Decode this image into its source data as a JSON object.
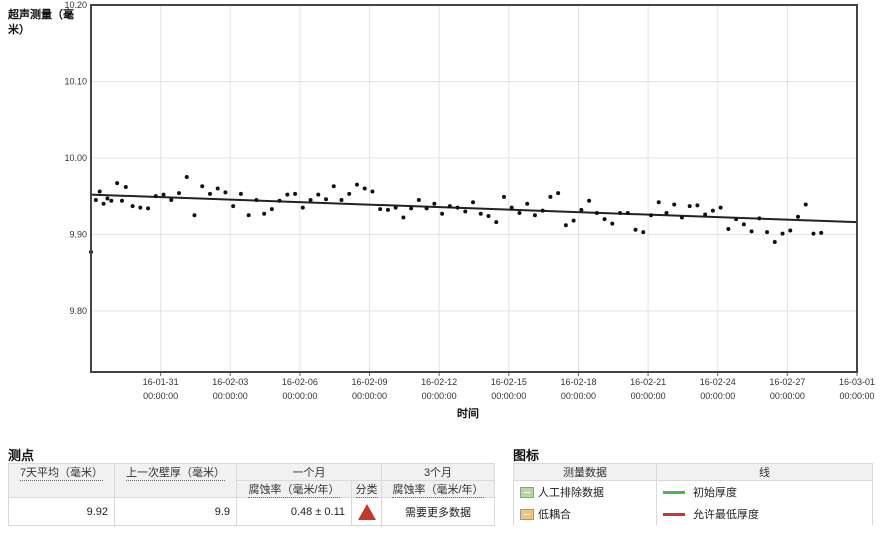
{
  "chart_data": {
    "type": "scatter",
    "ylabel": "超声测量（毫米）",
    "xlabel": "时间",
    "ylim": [
      9.72,
      10.2
    ],
    "xlim": [
      "16-01-28",
      "16-03-01"
    ],
    "y_ticks": [
      "10.20",
      "10.10",
      "10.00",
      "9.90",
      "9.80"
    ],
    "x_ticks": [
      {
        "date": "16-01-31",
        "time": "00:00:00"
      },
      {
        "date": "16-02-03",
        "time": "00:00:00"
      },
      {
        "date": "16-02-06",
        "time": "00:00:00"
      },
      {
        "date": "16-02-09",
        "time": "00:00:00"
      },
      {
        "date": "16-02-12",
        "time": "00:00:00"
      },
      {
        "date": "16-02-15",
        "time": "00:00:00"
      },
      {
        "date": "16-02-18",
        "time": "00:00:00"
      },
      {
        "date": "16-02-21",
        "time": "00:00:00"
      },
      {
        "date": "16-02-24",
        "time": "00:00:00"
      },
      {
        "date": "16-02-27",
        "time": "00:00:00"
      },
      {
        "date": "16-03-01",
        "time": "00:00:00"
      }
    ],
    "grid": true,
    "trend": {
      "start": [
        "16-01-28 00:00",
        9.952
      ],
      "end": [
        "16-03-01 00:00",
        9.916
      ]
    },
    "points": [
      [
        "16-01-28 00:00",
        9.877
      ],
      [
        "16-01-28 05:00",
        9.945
      ],
      [
        "16-01-28 09:00",
        9.956
      ],
      [
        "16-01-28 13:00",
        9.94
      ],
      [
        "16-01-28 17:00",
        9.947
      ],
      [
        "16-01-28 21:00",
        9.944
      ],
      [
        "16-01-29 03:00",
        9.967
      ],
      [
        "16-01-29 08:00",
        9.944
      ],
      [
        "16-01-29 12:00",
        9.962
      ],
      [
        "16-01-29 19:00",
        9.937
      ],
      [
        "16-01-30 03:00",
        9.935
      ],
      [
        "16-01-30 11:00",
        9.934
      ],
      [
        "16-01-30 19:00",
        9.95
      ],
      [
        "16-01-31 03:00",
        9.952
      ],
      [
        "16-01-31 11:00",
        9.945
      ],
      [
        "16-01-31 19:00",
        9.954
      ],
      [
        "16-02-01 03:00",
        9.975
      ],
      [
        "16-02-01 11:00",
        9.925
      ],
      [
        "16-02-01 19:00",
        9.963
      ],
      [
        "16-02-02 03:00",
        9.953
      ],
      [
        "16-02-02 11:00",
        9.96
      ],
      [
        "16-02-02 19:00",
        9.955
      ],
      [
        "16-02-03 03:00",
        9.937
      ],
      [
        "16-02-03 11:00",
        9.953
      ],
      [
        "16-02-03 19:00",
        9.925
      ],
      [
        "16-02-04 03:00",
        9.945
      ],
      [
        "16-02-04 11:00",
        9.927
      ],
      [
        "16-02-04 19:00",
        9.933
      ],
      [
        "16-02-05 03:00",
        9.944
      ],
      [
        "16-02-05 11:00",
        9.952
      ],
      [
        "16-02-05 19:00",
        9.953
      ],
      [
        "16-02-06 03:00",
        9.935
      ],
      [
        "16-02-06 11:00",
        9.945
      ],
      [
        "16-02-06 19:00",
        9.952
      ],
      [
        "16-02-07 03:00",
        9.946
      ],
      [
        "16-02-07 11:00",
        9.963
      ],
      [
        "16-02-07 19:00",
        9.945
      ],
      [
        "16-02-08 03:00",
        9.953
      ],
      [
        "16-02-08 11:00",
        9.965
      ],
      [
        "16-02-08 19:00",
        9.96
      ],
      [
        "16-02-09 03:00",
        9.956
      ],
      [
        "16-02-09 11:00",
        9.933
      ],
      [
        "16-02-09 19:00",
        9.932
      ],
      [
        "16-02-10 03:00",
        9.935
      ],
      [
        "16-02-10 11:00",
        9.922
      ],
      [
        "16-02-10 19:00",
        9.934
      ],
      [
        "16-02-11 03:00",
        9.945
      ],
      [
        "16-02-11 11:00",
        9.934
      ],
      [
        "16-02-11 19:00",
        9.94
      ],
      [
        "16-02-12 03:00",
        9.927
      ],
      [
        "16-02-12 11:00",
        9.937
      ],
      [
        "16-02-12 19:00",
        9.935
      ],
      [
        "16-02-13 03:00",
        9.93
      ],
      [
        "16-02-13 11:00",
        9.942
      ],
      [
        "16-02-13 19:00",
        9.927
      ],
      [
        "16-02-14 03:00",
        9.924
      ],
      [
        "16-02-14 11:00",
        9.916
      ],
      [
        "16-02-14 19:00",
        9.949
      ],
      [
        "16-02-15 03:00",
        9.935
      ],
      [
        "16-02-15 11:00",
        9.928
      ],
      [
        "16-02-15 19:00",
        9.94
      ],
      [
        "16-02-16 03:00",
        9.925
      ],
      [
        "16-02-16 11:00",
        9.931
      ],
      [
        "16-02-16 19:00",
        9.949
      ],
      [
        "16-02-17 03:00",
        9.954
      ],
      [
        "16-02-17 11:00",
        9.912
      ],
      [
        "16-02-17 19:00",
        9.918
      ],
      [
        "16-02-18 03:00",
        9.932
      ],
      [
        "16-02-18 11:00",
        9.944
      ],
      [
        "16-02-18 19:00",
        9.928
      ],
      [
        "16-02-19 03:00",
        9.92
      ],
      [
        "16-02-19 11:00",
        9.914
      ],
      [
        "16-02-19 19:00",
        9.928
      ],
      [
        "16-02-20 03:00",
        9.928
      ],
      [
        "16-02-20 11:00",
        9.906
      ],
      [
        "16-02-20 19:00",
        9.903
      ],
      [
        "16-02-21 03:00",
        9.925
      ],
      [
        "16-02-21 11:00",
        9.942
      ],
      [
        "16-02-21 19:00",
        9.928
      ],
      [
        "16-02-22 03:00",
        9.939
      ],
      [
        "16-02-22 11:00",
        9.922
      ],
      [
        "16-02-22 19:00",
        9.937
      ],
      [
        "16-02-23 03:00",
        9.938
      ],
      [
        "16-02-23 11:00",
        9.926
      ],
      [
        "16-02-23 19:00",
        9.931
      ],
      [
        "16-02-24 03:00",
        9.935
      ],
      [
        "16-02-24 11:00",
        9.907
      ],
      [
        "16-02-24 19:00",
        9.92
      ],
      [
        "16-02-25 03:00",
        9.913
      ],
      [
        "16-02-25 11:00",
        9.904
      ],
      [
        "16-02-25 19:00",
        9.921
      ],
      [
        "16-02-26 03:00",
        9.903
      ],
      [
        "16-02-26 11:00",
        9.89
      ],
      [
        "16-02-26 19:00",
        9.901
      ],
      [
        "16-02-27 03:00",
        9.905
      ],
      [
        "16-02-27 11:00",
        9.923
      ],
      [
        "16-02-27 19:00",
        9.939
      ],
      [
        "16-02-28 03:00",
        9.901
      ],
      [
        "16-02-28 11:00",
        9.902
      ]
    ]
  },
  "points_section": {
    "title": "测点",
    "headers": {
      "avg7": "7天平均（毫米）",
      "last_wall": "上一次壁厚（毫米）",
      "one_month": "一个月",
      "three_month": "3个月",
      "rate": "腐蚀率（毫米/年）",
      "category": "分类",
      "rate3": "腐蚀率（毫米/年）"
    },
    "row": {
      "avg7": "9.92",
      "last_wall": "9.9",
      "rate_1m": "0.48 ± 0.11",
      "category_icon": "red-triangle-warning",
      "rate_3m": "需要更多数据"
    }
  },
  "legend_section": {
    "title": "图标",
    "headers": {
      "data": "测量数据",
      "line": "线"
    },
    "items": [
      {
        "label": "人工排除数据",
        "color": "#b5d99c"
      },
      {
        "label": "低耦合",
        "color": "#f5c27a"
      }
    ],
    "lines": [
      {
        "label": "初始厚度",
        "color": "#4cb84c"
      },
      {
        "label": "允许最低厚度",
        "color": "#cc3333"
      }
    ]
  }
}
